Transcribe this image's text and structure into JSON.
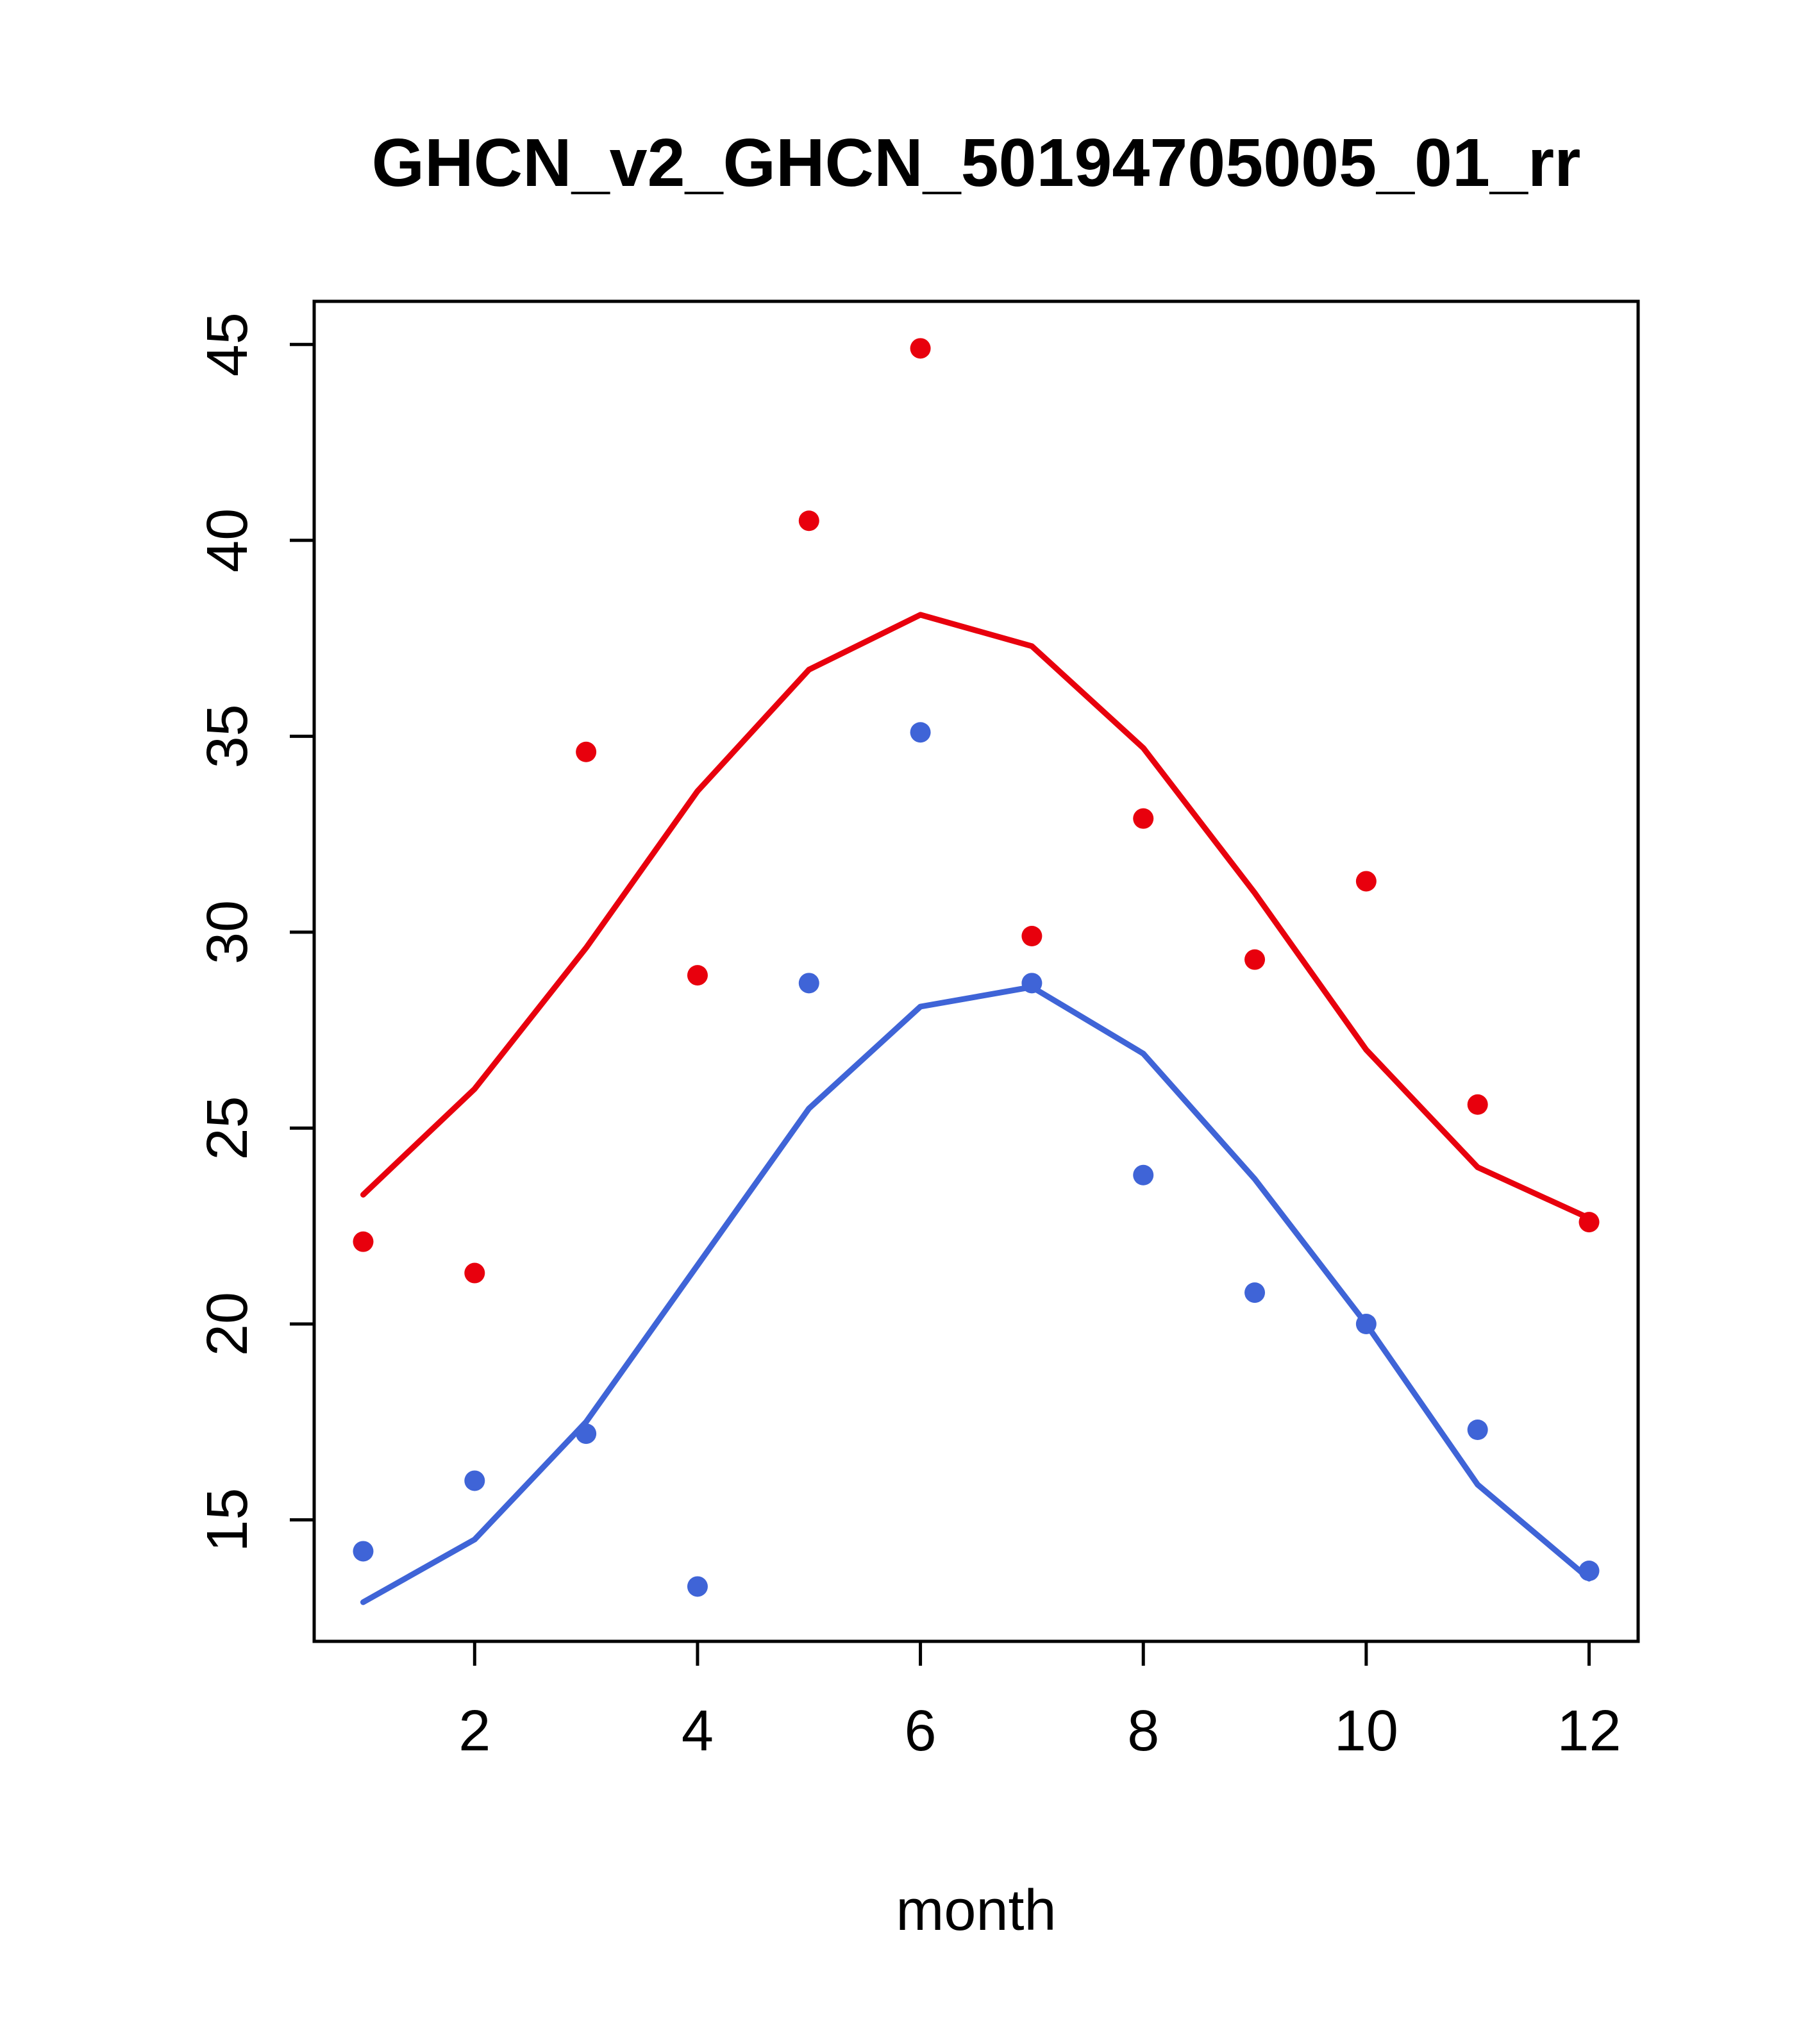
{
  "chart_data": {
    "type": "scatter",
    "title": "GHCN_v2_GHCN_50194705005_01_rr",
    "xlabel": "month",
    "ylabel": "",
    "x": [
      1,
      2,
      3,
      4,
      5,
      6,
      7,
      8,
      9,
      10,
      11,
      12
    ],
    "xticks": [
      2,
      4,
      6,
      8,
      10,
      12
    ],
    "yticks": [
      15,
      20,
      25,
      30,
      35,
      40,
      45
    ],
    "xlim": [
      0.56,
      12.44
    ],
    "ylim": [
      11.9,
      46.1
    ],
    "grid": false,
    "legend": "none",
    "colors": {
      "red": "#e8000d",
      "blue": "#3f64d7",
      "axis": "#000000"
    },
    "series": [
      {
        "name": "red-monthly-points",
        "type": "points",
        "color": "#e8000d",
        "values": [
          22.1,
          21.3,
          34.6,
          28.9,
          40.5,
          44.9,
          29.9,
          32.9,
          29.3,
          31.3,
          25.6,
          22.6
        ]
      },
      {
        "name": "red-climatology-line",
        "type": "line",
        "color": "#e8000d",
        "values": [
          23.3,
          26.0,
          29.6,
          33.6,
          36.7,
          38.1,
          37.3,
          34.7,
          31.0,
          27.0,
          24.0,
          22.7
        ]
      },
      {
        "name": "blue-monthly-points",
        "type": "points",
        "color": "#3f64d7",
        "values": [
          14.2,
          16.0,
          17.2,
          13.3,
          28.7,
          35.1,
          28.7,
          23.8,
          20.8,
          20.0,
          17.3,
          13.7
        ]
      },
      {
        "name": "blue-climatology-line",
        "type": "line",
        "color": "#3f64d7",
        "values": [
          12.9,
          14.5,
          17.5,
          21.5,
          25.5,
          28.1,
          28.6,
          26.9,
          23.7,
          20.0,
          15.9,
          13.5
        ]
      }
    ],
    "layout": {
      "plot_left": 490,
      "plot_right": 2555,
      "plot_top": 470,
      "plot_bottom": 2560,
      "title_y": 290,
      "xlabel_y": 3010,
      "tick_len": 38,
      "x_tick_label_y": 2730,
      "y_tick_label_x": 385
    }
  }
}
